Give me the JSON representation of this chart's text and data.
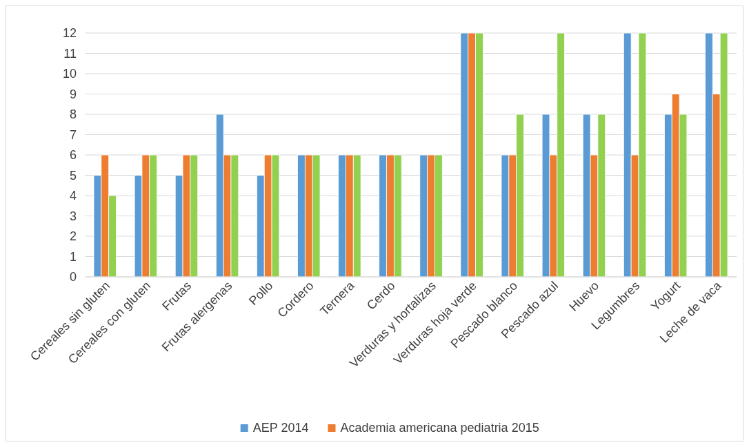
{
  "chart_data": {
    "type": "bar",
    "categories": [
      "Cereales sin gluten",
      "Cereales con gluten",
      "Frutas",
      "Frutas alergenas",
      "Pollo",
      "Cordero",
      "Ternera",
      "Cerdo",
      "Verduras y hortalizas",
      "Verduras hoja verde",
      "Pescado blanco",
      "Pescado azul",
      "Huevo",
      "Legumbres",
      "Yogurt",
      "Leche de vaca"
    ],
    "series": [
      {
        "name": "AEP 2014",
        "color": "#5b9bd5",
        "values": [
          5,
          5,
          5,
          8,
          5,
          6,
          6,
          6,
          6,
          12,
          6,
          8,
          8,
          12,
          8,
          12
        ]
      },
      {
        "name": "Academia americana pediatria 2015",
        "color": "#ed7d31",
        "values": [
          6,
          6,
          6,
          6,
          6,
          6,
          6,
          6,
          6,
          12,
          6,
          6,
          6,
          6,
          9,
          9
        ]
      },
      {
        "color": "#92d050",
        "values": [
          4,
          6,
          6,
          6,
          6,
          6,
          6,
          6,
          6,
          12,
          8,
          12,
          8,
          12,
          8,
          12
        ]
      }
    ],
    "ylim": [
      0,
      12
    ],
    "yticks": [
      0,
      1,
      2,
      3,
      4,
      5,
      6,
      7,
      8,
      9,
      10,
      11,
      12
    ],
    "grid": "y",
    "legend": "bottom"
  }
}
